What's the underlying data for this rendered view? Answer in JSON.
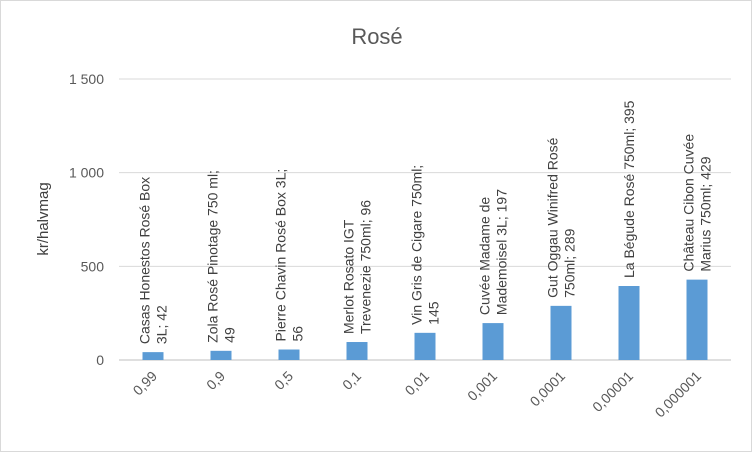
{
  "chart_data": {
    "type": "bar",
    "title": "Rosé",
    "xlabel": "",
    "ylabel": "kr/halvmag",
    "ylim": [
      0,
      1500
    ],
    "yticks": [
      0,
      500,
      1000,
      1500
    ],
    "ytick_labels": [
      "0",
      "500",
      "1 000",
      "1 500"
    ],
    "grid": true,
    "legend": "none",
    "categories": [
      "0,99",
      "0,9",
      "0,5",
      "0,1",
      "0,01",
      "0,001",
      "0,0001",
      "0,00001",
      "0,000001"
    ],
    "values": [
      42,
      49,
      56,
      96,
      145,
      197,
      289,
      395,
      429
    ],
    "data_labels": [
      [
        "Casas Honestos Rosé Box",
        "3L; 42"
      ],
      [
        "Zola Rosé Pinotage 750 ml;",
        "49"
      ],
      [
        "Pierre Chavin Rosé Box 3L;",
        "56"
      ],
      [
        "Merlot Rosato IGT",
        "Trevenezie 750ml; 96"
      ],
      [
        "Vin Gris de Cigare 750ml;",
        "145"
      ],
      [
        "Cuvée Madame de",
        "Mademoisel 3L; 197"
      ],
      [
        "Gut Oggau Winifred Rosé",
        "750ml; 289"
      ],
      [
        "La Bégude Rosé 750ml; 395"
      ],
      [
        "Château Cibon Cuvée",
        "Marius 750ml; 429"
      ]
    ],
    "colors": {
      "bar": "#5b9bd5",
      "grid": "#d9d9d9",
      "text": "#595959"
    }
  }
}
